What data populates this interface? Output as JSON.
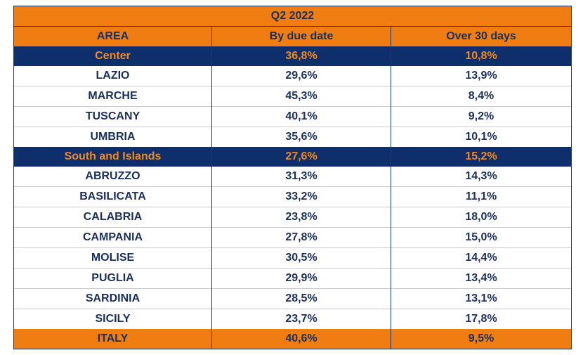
{
  "chart_data": {
    "type": "table",
    "title": "Q2 2022",
    "columns": [
      "AREA",
      "By due date",
      "Over 30 days"
    ],
    "rows": [
      {
        "kind": "group",
        "area": "Center",
        "by_due_date": "36,8%",
        "over_30_days": "10,8%"
      },
      {
        "kind": "region",
        "area": "LAZIO",
        "by_due_date": "29,6%",
        "over_30_days": "13,9%"
      },
      {
        "kind": "region",
        "area": "MARCHE",
        "by_due_date": "45,3%",
        "over_30_days": "8,4%"
      },
      {
        "kind": "region",
        "area": "TUSCANY",
        "by_due_date": "40,1%",
        "over_30_days": "9,2%"
      },
      {
        "kind": "region",
        "area": "UMBRIA",
        "by_due_date": "35,6%",
        "over_30_days": "10,1%"
      },
      {
        "kind": "group",
        "area": "South and Islands",
        "by_due_date": "27,6%",
        "over_30_days": "15,2%"
      },
      {
        "kind": "region",
        "area": "ABRUZZO",
        "by_due_date": "31,3%",
        "over_30_days": "14,3%"
      },
      {
        "kind": "region",
        "area": "BASILICATA",
        "by_due_date": "33,2%",
        "over_30_days": "11,1%"
      },
      {
        "kind": "region",
        "area": "CALABRIA",
        "by_due_date": "23,8%",
        "over_30_days": "18,0%"
      },
      {
        "kind": "region",
        "area": "CAMPANIA",
        "by_due_date": "27,8%",
        "over_30_days": "15,0%"
      },
      {
        "kind": "region",
        "area": "MOLISE",
        "by_due_date": "30,5%",
        "over_30_days": "14,4%"
      },
      {
        "kind": "region",
        "area": "PUGLIA",
        "by_due_date": "29,9%",
        "over_30_days": "13,4%"
      },
      {
        "kind": "region",
        "area": "SARDINIA",
        "by_due_date": "28,5%",
        "over_30_days": "13,1%"
      },
      {
        "kind": "region",
        "area": "SICILY",
        "by_due_date": "23,7%",
        "over_30_days": "17,8%"
      },
      {
        "kind": "total",
        "area": "ITALY",
        "by_due_date": "40,6%",
        "over_30_days": "9,5%"
      }
    ],
    "colors": {
      "header_bg": "#ef7d12",
      "group_bg": "#0e2f6b",
      "group_text": "#f08a1f",
      "body_text": "#1a2f5c"
    }
  }
}
